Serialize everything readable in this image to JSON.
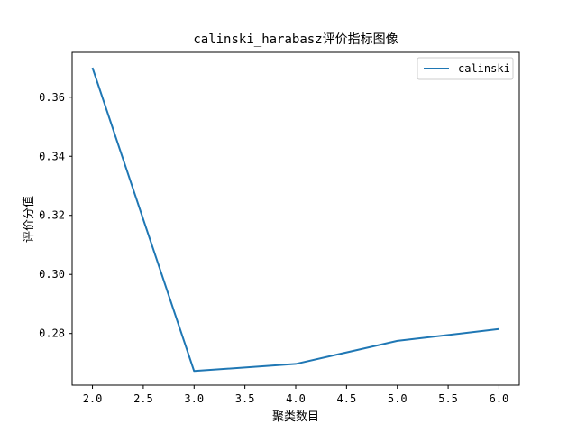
{
  "chart_data": {
    "type": "line",
    "title": "calinski_harabasz评价指标图像",
    "xlabel": "聚类数目",
    "ylabel": "评价分值",
    "x": [
      2.0,
      3.0,
      4.0,
      5.0,
      6.0
    ],
    "series": [
      {
        "name": "calinski",
        "values": [
          0.37,
          0.2673,
          0.2697,
          0.2775,
          0.2815
        ],
        "color": "#1f77b4"
      }
    ],
    "xlim": [
      1.8,
      6.2
    ],
    "ylim": [
      0.2625,
      0.3752
    ],
    "xticks": [
      "2.0",
      "2.5",
      "3.0",
      "3.5",
      "4.0",
      "4.5",
      "5.0",
      "5.5",
      "6.0"
    ],
    "yticks": [
      "0.28",
      "0.30",
      "0.32",
      "0.34",
      "0.36"
    ],
    "grid": false,
    "legend_position": "top-right"
  }
}
